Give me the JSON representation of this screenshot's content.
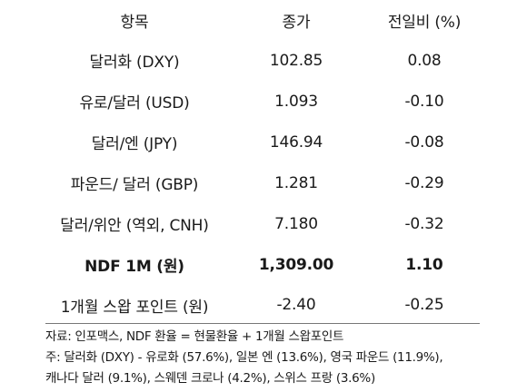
{
  "table": {
    "headers": [
      "항목",
      "종가",
      "전일비 (%)"
    ],
    "rows": [
      {
        "item": "달러화 (DXY)",
        "close": "102.85",
        "change": "0.08",
        "bold": false
      },
      {
        "item": "유로/달러 (USD)",
        "close": "1.093",
        "change": "-0.10",
        "bold": false
      },
      {
        "item": "달러/엔 (JPY)",
        "close": "146.94",
        "change": "-0.08",
        "bold": false
      },
      {
        "item": "파운드/ 달러 (GBP)",
        "close": "1.281",
        "change": "-0.29",
        "bold": false
      },
      {
        "item": "달러/위안 (역외, CNH)",
        "close": "7.180",
        "change": "-0.32",
        "bold": false
      },
      {
        "item": "NDF 1M (원)",
        "close": "1,309.00",
        "change": "1.10",
        "bold": true
      },
      {
        "item": "1개월 스왑 포인트 (원)",
        "close": "-2.40",
        "change": "-0.25",
        "bold": false
      }
    ]
  },
  "notes": {
    "source": "자료: 인포맥스, NDF 환율 = 현물환율 + 1개월 스왑포인트",
    "note_line1": "주: 달러화 (DXY) - 유로화 (57.6%), 일본 엔 (13.6%), 영국 파운드 (11.9%),",
    "note_line2": "캐나다 달러 (9.1%), 스웨덴 크로나 (4.2%), 스위스 프랑 (3.6%)"
  }
}
